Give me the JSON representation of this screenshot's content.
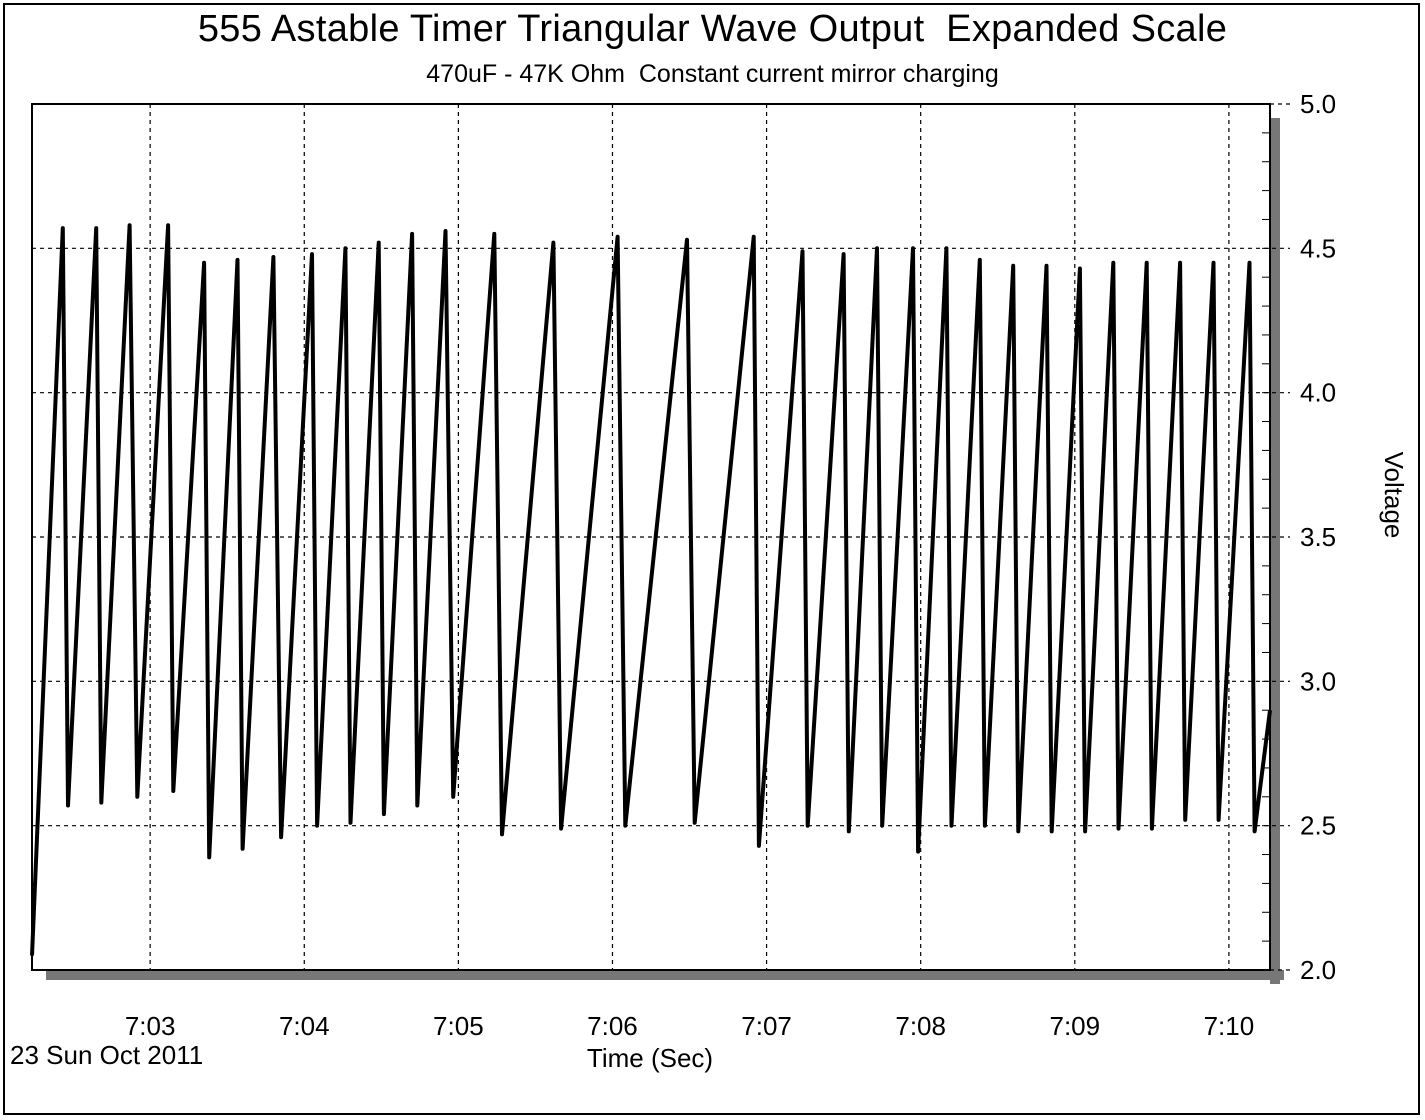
{
  "chart_data": {
    "type": "line",
    "title": "555 Astable Timer Triangular Wave Output  Expanded Scale",
    "subtitle": "470uF - 47K Ohm  Constant current mirror charging",
    "xlabel": "Time (Sec)",
    "ylabel": "Voltage",
    "date_label": "23 Sun Oct 2011",
    "xlim": [
      "7:02:14",
      "7:10:16"
    ],
    "ylim": [
      2.0,
      5.0
    ],
    "x_ticks": [
      "7:03",
      "7:04",
      "7:05",
      "7:06",
      "7:07",
      "7:08",
      "7:09",
      "7:10"
    ],
    "y_ticks": [
      "2.0",
      "2.5",
      "3.0",
      "3.5",
      "4.0",
      "4.5",
      "5.0"
    ],
    "grid": true,
    "series": [
      {
        "x": [
          "7:02:14",
          "7:02:26",
          "7:02:28",
          "7:02:39",
          "7:02:41",
          "7:02:52",
          "7:02:55",
          "7:03:07",
          "7:03:09",
          "7:03:21",
          "7:03:23",
          "7:03:34",
          "7:03:36",
          "7:03:48",
          "7:03:51",
          "7:04:03",
          "7:04:05",
          "7:04:16",
          "7:04:18",
          "7:04:29",
          "7:04:31",
          "7:04:42",
          "7:04:44",
          "7:04:55",
          "7:04:58",
          "7:05:14",
          "7:05:17",
          "7:05:37",
          "7:05:40",
          "7:06:02",
          "7:06:05",
          "7:06:29",
          "7:06:32",
          "7:06:55",
          "7:06:57",
          "7:07:14",
          "7:07:16",
          "7:07:30",
          "7:07:32",
          "7:07:43",
          "7:07:45",
          "7:07:57",
          "7:07:59",
          "7:08:10",
          "7:08:12",
          "7:08:23",
          "7:08:25",
          "7:08:36",
          "7:08:38",
          "7:08:49",
          "7:08:51",
          "7:09:02",
          "7:09:04",
          "7:09:15",
          "7:09:17",
          "7:09:28",
          "7:09:30",
          "7:09:41",
          "7:09:43",
          "7:09:54",
          "7:09:56",
          "7:10:08",
          "7:10:10",
          "7:10:16"
        ],
        "y": [
          2.05,
          4.57,
          2.57,
          4.57,
          2.58,
          4.58,
          2.6,
          4.58,
          2.62,
          4.45,
          2.39,
          4.46,
          2.42,
          4.47,
          2.46,
          4.48,
          2.5,
          4.5,
          2.51,
          4.52,
          2.54,
          4.55,
          2.57,
          4.56,
          2.6,
          4.55,
          2.47,
          4.52,
          2.49,
          4.54,
          2.5,
          4.53,
          2.51,
          4.54,
          2.43,
          4.49,
          2.5,
          4.48,
          2.48,
          4.5,
          2.5,
          4.5,
          2.41,
          4.5,
          2.5,
          4.46,
          2.5,
          4.44,
          2.48,
          4.44,
          2.48,
          4.43,
          2.48,
          4.45,
          2.49,
          4.45,
          2.49,
          4.45,
          2.52,
          4.45,
          2.52,
          4.45,
          2.48,
          2.9
        ]
      }
    ]
  }
}
